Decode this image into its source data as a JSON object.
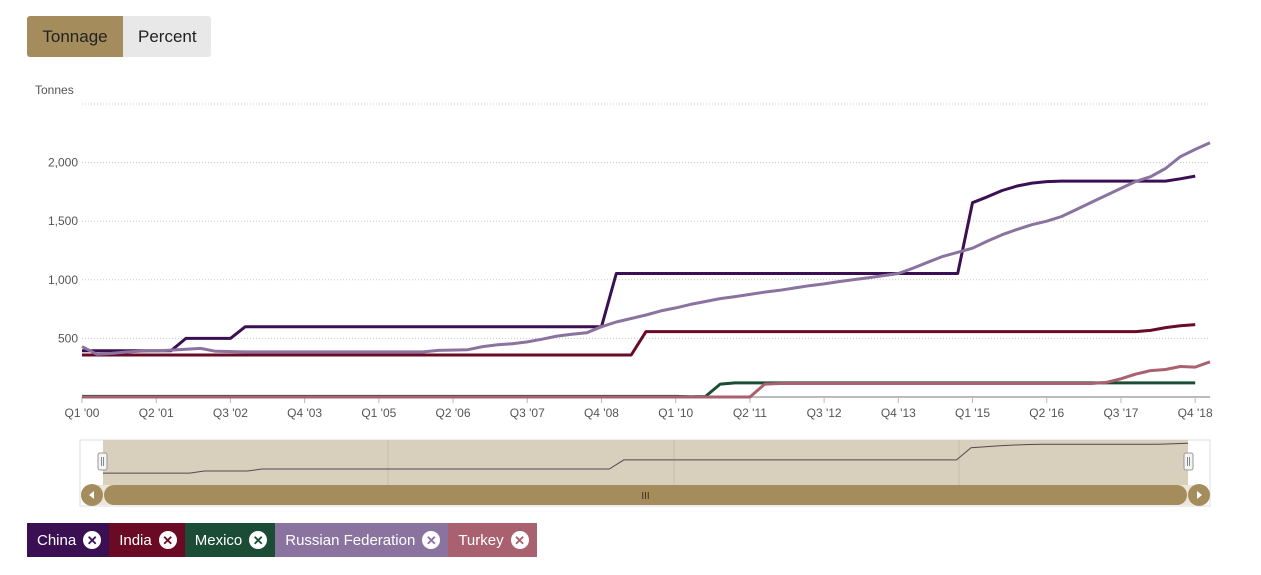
{
  "toggle": {
    "tonnage_label": "Tonnage",
    "percent_label": "Percent",
    "active": "Tonnage"
  },
  "chart_data": {
    "type": "line",
    "ylabel": "Tonnes",
    "y_ticks": [
      "500",
      "1,000",
      "1,500",
      "2,000"
    ],
    "y_tick_values": [
      500,
      1000,
      1500,
      2000
    ],
    "ylim": [
      0,
      2500
    ],
    "x_ticks": [
      "Q1 '00",
      "Q2 '01",
      "Q3 '02",
      "Q4 '03",
      "Q1 '05",
      "Q2 '06",
      "Q3 '07",
      "Q4 '08",
      "Q1 '10",
      "Q2 '11",
      "Q3 '12",
      "Q4 '13",
      "Q1 '15",
      "Q2 '16",
      "Q3 '17",
      "Q4 '18"
    ],
    "x_range": [
      "Q1 '00",
      "Q4 '18"
    ],
    "grid": true,
    "legend_position": "bottom-left",
    "series": [
      {
        "name": "China",
        "color": "#3b1053",
        "points": [
          [
            0,
            395
          ],
          [
            6,
            395
          ],
          [
            7,
            500
          ],
          [
            10,
            500
          ],
          [
            11,
            600
          ],
          [
            35,
            600
          ],
          [
            36,
            1054
          ],
          [
            59,
            1054
          ],
          [
            60,
            1658
          ],
          [
            61,
            1708
          ],
          [
            62,
            1762
          ],
          [
            63,
            1800
          ],
          [
            64,
            1825
          ],
          [
            65,
            1838
          ],
          [
            66,
            1842
          ],
          [
            73,
            1842
          ],
          [
            74,
            1862
          ],
          [
            75,
            1885
          ]
        ]
      },
      {
        "name": "India",
        "color": "#6a0a25",
        "points": [
          [
            0,
            358
          ],
          [
            37,
            358
          ],
          [
            38,
            558
          ],
          [
            71,
            558
          ],
          [
            72,
            568
          ],
          [
            73,
            592
          ],
          [
            74,
            608
          ],
          [
            75,
            618
          ]
        ]
      },
      {
        "name": "Mexico",
        "color": "#1b4d36",
        "points": [
          [
            0,
            5
          ],
          [
            40,
            5
          ],
          [
            41,
            2
          ],
          [
            42,
            4
          ],
          [
            43,
            110
          ],
          [
            44,
            120
          ],
          [
            75,
            120
          ]
        ]
      },
      {
        "name": "Russian Federation",
        "color": "#8b73a0",
        "points": [
          [
            0,
            430
          ],
          [
            1,
            365
          ],
          [
            2,
            372
          ],
          [
            3,
            384
          ],
          [
            4,
            392
          ],
          [
            5,
            393
          ],
          [
            6,
            400
          ],
          [
            7,
            408
          ],
          [
            8,
            415
          ],
          [
            9,
            390
          ],
          [
            11,
            385
          ],
          [
            23,
            385
          ],
          [
            24,
            398
          ],
          [
            26,
            404
          ],
          [
            27,
            430
          ],
          [
            28,
            445
          ],
          [
            29,
            455
          ],
          [
            30,
            470
          ],
          [
            31,
            493
          ],
          [
            32,
            520
          ],
          [
            33,
            535
          ],
          [
            34,
            548
          ],
          [
            35,
            600
          ],
          [
            36,
            640
          ],
          [
            37,
            670
          ],
          [
            38,
            700
          ],
          [
            39,
            735
          ],
          [
            40,
            760
          ],
          [
            41,
            790
          ],
          [
            42,
            815
          ],
          [
            43,
            840
          ],
          [
            44,
            857
          ],
          [
            45,
            875
          ],
          [
            46,
            895
          ],
          [
            47,
            910
          ],
          [
            48,
            930
          ],
          [
            49,
            950
          ],
          [
            50,
            965
          ],
          [
            51,
            985
          ],
          [
            52,
            1002
          ],
          [
            53,
            1018
          ],
          [
            54,
            1036
          ],
          [
            55,
            1054
          ],
          [
            56,
            1100
          ],
          [
            57,
            1150
          ],
          [
            58,
            1200
          ],
          [
            59,
            1235
          ],
          [
            60,
            1270
          ],
          [
            61,
            1330
          ],
          [
            62,
            1385
          ],
          [
            63,
            1430
          ],
          [
            64,
            1470
          ],
          [
            65,
            1500
          ],
          [
            66,
            1540
          ],
          [
            67,
            1600
          ],
          [
            68,
            1660
          ],
          [
            69,
            1720
          ],
          [
            70,
            1780
          ],
          [
            71,
            1840
          ],
          [
            72,
            1880
          ],
          [
            73,
            1950
          ],
          [
            74,
            2050
          ],
          [
            75,
            2113
          ],
          [
            76,
            2170
          ]
        ]
      },
      {
        "name": "Turkey",
        "color": "#a9616f",
        "points": [
          [
            0,
            0
          ],
          [
            45,
            0
          ],
          [
            46,
            110
          ],
          [
            47,
            115
          ],
          [
            68,
            115
          ],
          [
            69,
            125
          ],
          [
            70,
            155
          ],
          [
            71,
            195
          ],
          [
            72,
            225
          ],
          [
            73,
            235
          ],
          [
            74,
            260
          ],
          [
            75,
            255
          ],
          [
            76,
            300
          ]
        ]
      }
    ]
  },
  "navigator": {
    "handle_label": "III"
  },
  "legend": {
    "items": [
      {
        "label": "China",
        "color": "#3b1053"
      },
      {
        "label": "India",
        "color": "#6a0a25"
      },
      {
        "label": "Mexico",
        "color": "#1b4d36"
      },
      {
        "label": "Russian Federation",
        "color": "#8b73a0"
      },
      {
        "label": "Turkey",
        "color": "#a9616f"
      }
    ],
    "remove_symbol": "✕"
  }
}
